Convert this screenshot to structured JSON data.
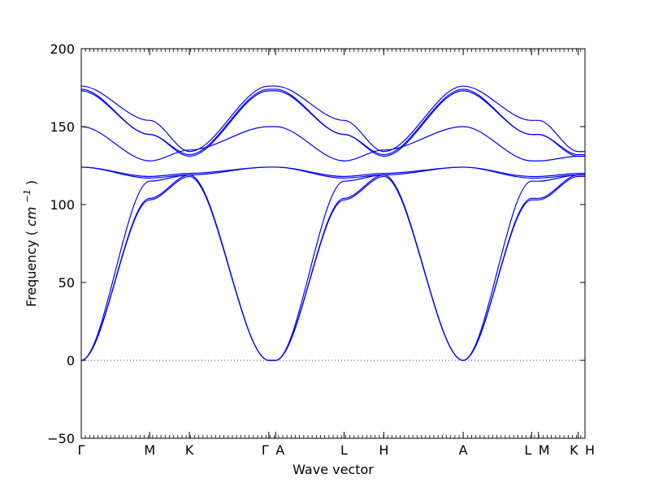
{
  "chart_data": {
    "type": "line",
    "xlabel": "Wave vector",
    "ylabel": "Frequency",
    "ylabel_unit_base": "cm",
    "ylabel_unit_exp": "−1",
    "ylim": [
      -50,
      200
    ],
    "yticks": [
      -50,
      0,
      50,
      100,
      150,
      200
    ],
    "grid": false,
    "zero_line": {
      "y": 0,
      "style": "dotted"
    },
    "line_color": "#0000ff",
    "q_points": [
      {
        "label": "Γ",
        "x": 0.0
      },
      {
        "label": "M",
        "x": 1.0
      },
      {
        "label": "K",
        "x": 1.58
      },
      {
        "label": "Γ",
        "x": 2.74
      },
      {
        "label": "A",
        "x": 2.84
      },
      {
        "label": "L",
        "x": 3.84
      },
      {
        "label": "H",
        "x": 4.42
      },
      {
        "label": "A",
        "x": 5.58
      },
      {
        "label": "L",
        "x": 6.58
      },
      {
        "label": "M",
        "x": 6.68
      },
      {
        "label": "K",
        "x": 7.26
      },
      {
        "label": "H",
        "x": 7.36
      }
    ],
    "series": [
      {
        "x": [
          0.0,
          1.0,
          1.58,
          2.74,
          2.84,
          3.84,
          4.42,
          5.58,
          6.58,
          6.68,
          7.26,
          7.36
        ],
        "y": [
          0,
          103,
          118,
          0,
          0,
          103,
          118,
          0,
          103,
          103,
          118,
          118
        ]
      },
      {
        "x": [
          0.0,
          1.0,
          1.58,
          2.74,
          2.84,
          3.84,
          4.42,
          5.58,
          6.58,
          6.68,
          7.26,
          7.36
        ],
        "y": [
          0,
          104,
          119,
          0,
          0,
          104,
          119,
          0,
          104,
          104,
          119,
          119
        ]
      },
      {
        "x": [
          0.0,
          1.0,
          1.58,
          2.74,
          2.84,
          3.84,
          4.42,
          5.58,
          6.58,
          6.68,
          7.26,
          7.36
        ],
        "y": [
          0,
          115,
          119,
          0,
          0,
          115,
          119,
          0,
          115,
          115,
          119,
          119
        ]
      },
      {
        "x": [
          0.0,
          1.0,
          1.58,
          2.74,
          2.84,
          3.84,
          4.42,
          5.58,
          6.58,
          6.68,
          7.26,
          7.36
        ],
        "y": [
          124,
          117,
          119,
          124,
          124,
          117,
          119,
          124,
          117,
          117,
          119,
          119
        ]
      },
      {
        "x": [
          0.0,
          1.0,
          1.58,
          2.74,
          2.84,
          3.84,
          4.42,
          5.58,
          6.58,
          6.68,
          7.26,
          7.36
        ],
        "y": [
          124,
          118,
          120,
          124,
          124,
          118,
          120,
          124,
          118,
          118,
          120,
          120
        ]
      },
      {
        "x": [
          0.0,
          1.0,
          1.58,
          2.74,
          2.84,
          3.84,
          4.42,
          5.58,
          6.58,
          6.68,
          7.26,
          7.36
        ],
        "y": [
          150,
          128,
          135,
          150,
          150,
          128,
          135,
          150,
          128,
          128,
          131,
          131
        ]
      },
      {
        "x": [
          0.0,
          1.0,
          1.58,
          2.74,
          2.84,
          3.84,
          4.42,
          5.58,
          6.58,
          6.68,
          7.26,
          7.36
        ],
        "y": [
          173,
          145,
          131,
          173,
          173,
          145,
          131,
          173,
          145,
          145,
          131,
          131
        ]
      },
      {
        "x": [
          0.0,
          1.0,
          1.58,
          2.74,
          2.84,
          3.84,
          4.42,
          5.58,
          6.58,
          6.68,
          7.26,
          7.36
        ],
        "y": [
          174,
          145,
          132,
          174,
          174,
          145,
          132,
          174,
          145,
          145,
          132,
          132
        ]
      },
      {
        "x": [
          0.0,
          1.0,
          1.58,
          2.74,
          2.84,
          3.84,
          4.42,
          5.58,
          6.58,
          6.68,
          7.26,
          7.36
        ],
        "y": [
          176,
          154,
          134,
          176,
          176,
          154,
          134,
          176,
          154,
          154,
          134,
          134
        ]
      }
    ]
  }
}
